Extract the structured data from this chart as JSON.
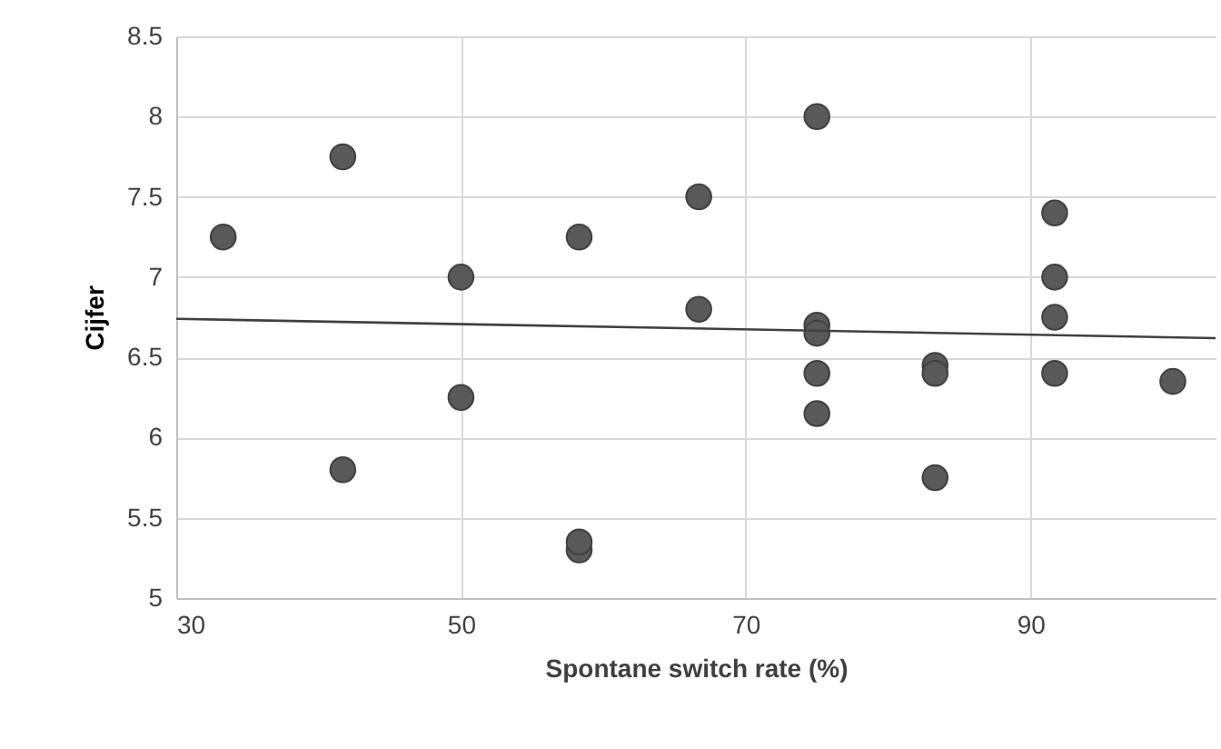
{
  "chart_data": {
    "type": "scatter",
    "xlabel": "Spontane switch rate (%)",
    "ylabel": "Cijfer",
    "xlim": [
      30,
      103
    ],
    "xticks": [
      30,
      50,
      70,
      90
    ],
    "ylim": [
      5,
      8.5
    ],
    "yticks": [
      5,
      5.5,
      6,
      6.5,
      7,
      7.5,
      8,
      8.5
    ],
    "grid": true,
    "series": [
      {
        "color": "#595959",
        "marker": "circle",
        "x": [
          33.3,
          41.7,
          41.7,
          50,
          50,
          58.3,
          58.3,
          58.3,
          66.7,
          66.7,
          75,
          75,
          75,
          75,
          75,
          83.3,
          83.3,
          83.3,
          91.7,
          91.7,
          91.7,
          91.7,
          100
        ],
        "values": [
          7.25,
          7.75,
          5.8,
          7.0,
          6.25,
          7.25,
          5.3,
          5.35,
          7.5,
          6.8,
          8.0,
          6.7,
          6.65,
          6.4,
          6.15,
          6.45,
          6.4,
          5.75,
          7.4,
          7.0,
          6.75,
          6.4,
          6.35
        ]
      },
      {
        "type": "line",
        "color": "#404040",
        "x": [
          30,
          103
        ],
        "values": [
          6.74,
          6.62
        ]
      }
    ]
  }
}
